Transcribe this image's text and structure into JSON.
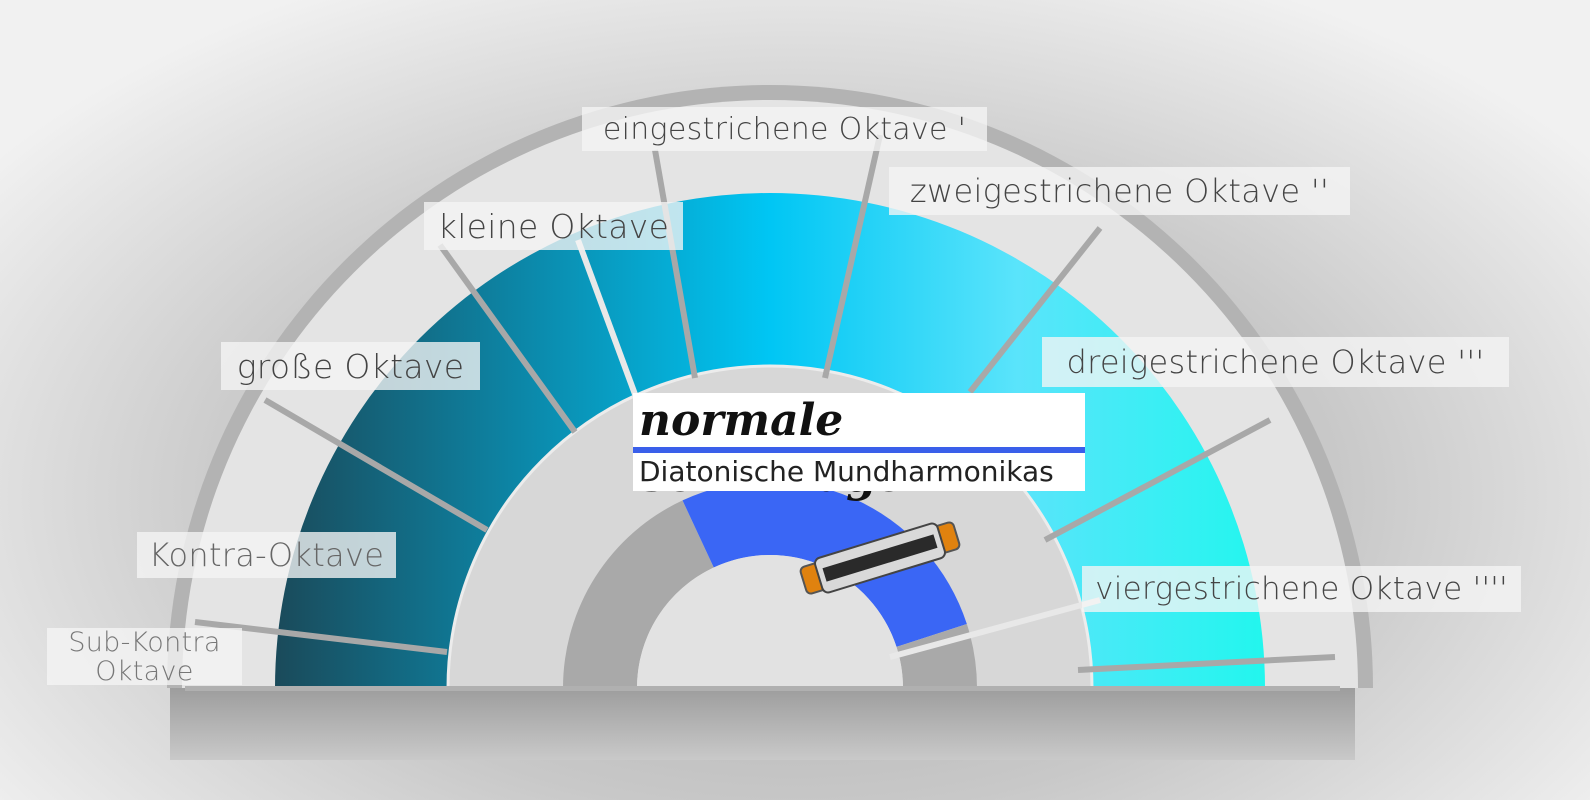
{
  "octaves": [
    "Sub-Kontra Oktave",
    "Kontra-Oktave",
    "große Oktave",
    "kleine Oktave",
    "eingestrichene Oktave '",
    "zweigestrichene Oktave ''",
    "dreigestrichene Oktave '''",
    "viergestrichene Oktave ''''"
  ],
  "title": "normale Stimmlage",
  "subtitle": "Diatonische Mundharmonikas"
}
